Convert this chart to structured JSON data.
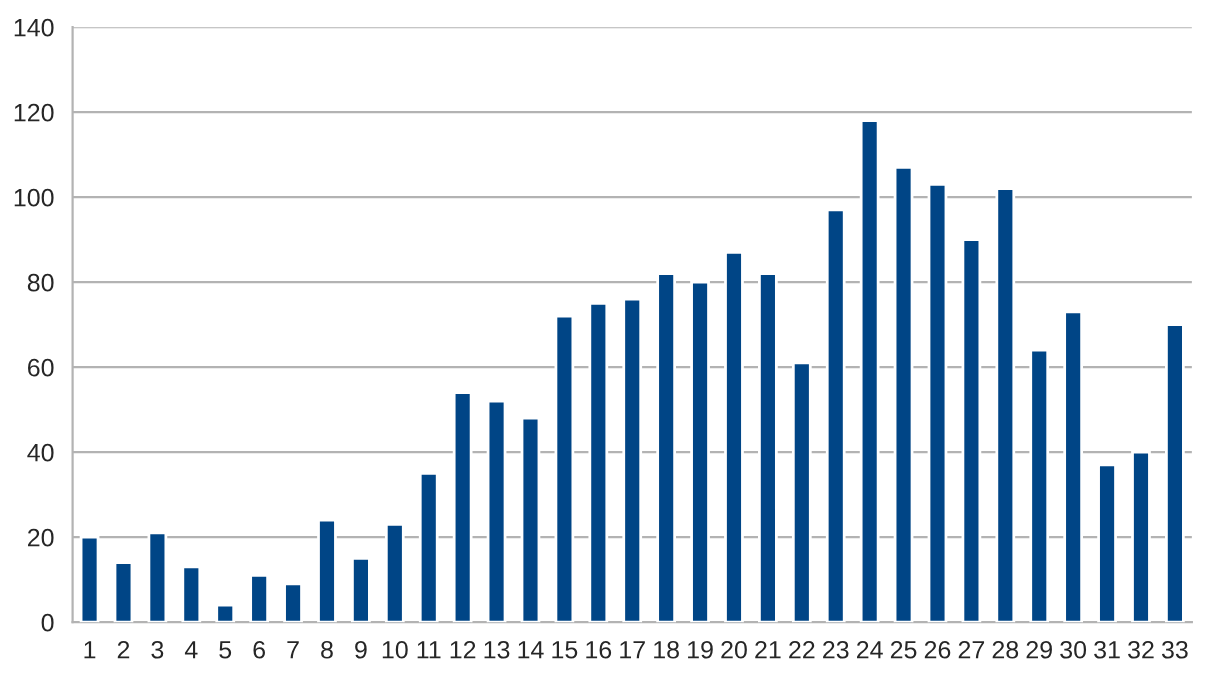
{
  "chart_data": {
    "type": "bar",
    "categories": [
      "1",
      "2",
      "3",
      "4",
      "5",
      "6",
      "7",
      "8",
      "9",
      "10",
      "11",
      "12",
      "13",
      "14",
      "15",
      "16",
      "17",
      "18",
      "19",
      "20",
      "21",
      "22",
      "23",
      "24",
      "25",
      "26",
      "27",
      "28",
      "29",
      "30",
      "31",
      "32",
      "33"
    ],
    "values": [
      20,
      14,
      21,
      13,
      4,
      11,
      9,
      24,
      15,
      23,
      35,
      54,
      52,
      48,
      72,
      75,
      76,
      82,
      80,
      87,
      82,
      61,
      97,
      118,
      107,
      103,
      90,
      102,
      64,
      73,
      37,
      40,
      70
    ],
    "color": "#004586",
    "ylim": [
      0,
      140
    ],
    "yticks": [
      0,
      20,
      40,
      60,
      80,
      100,
      120,
      140
    ],
    "grid": "y"
  }
}
